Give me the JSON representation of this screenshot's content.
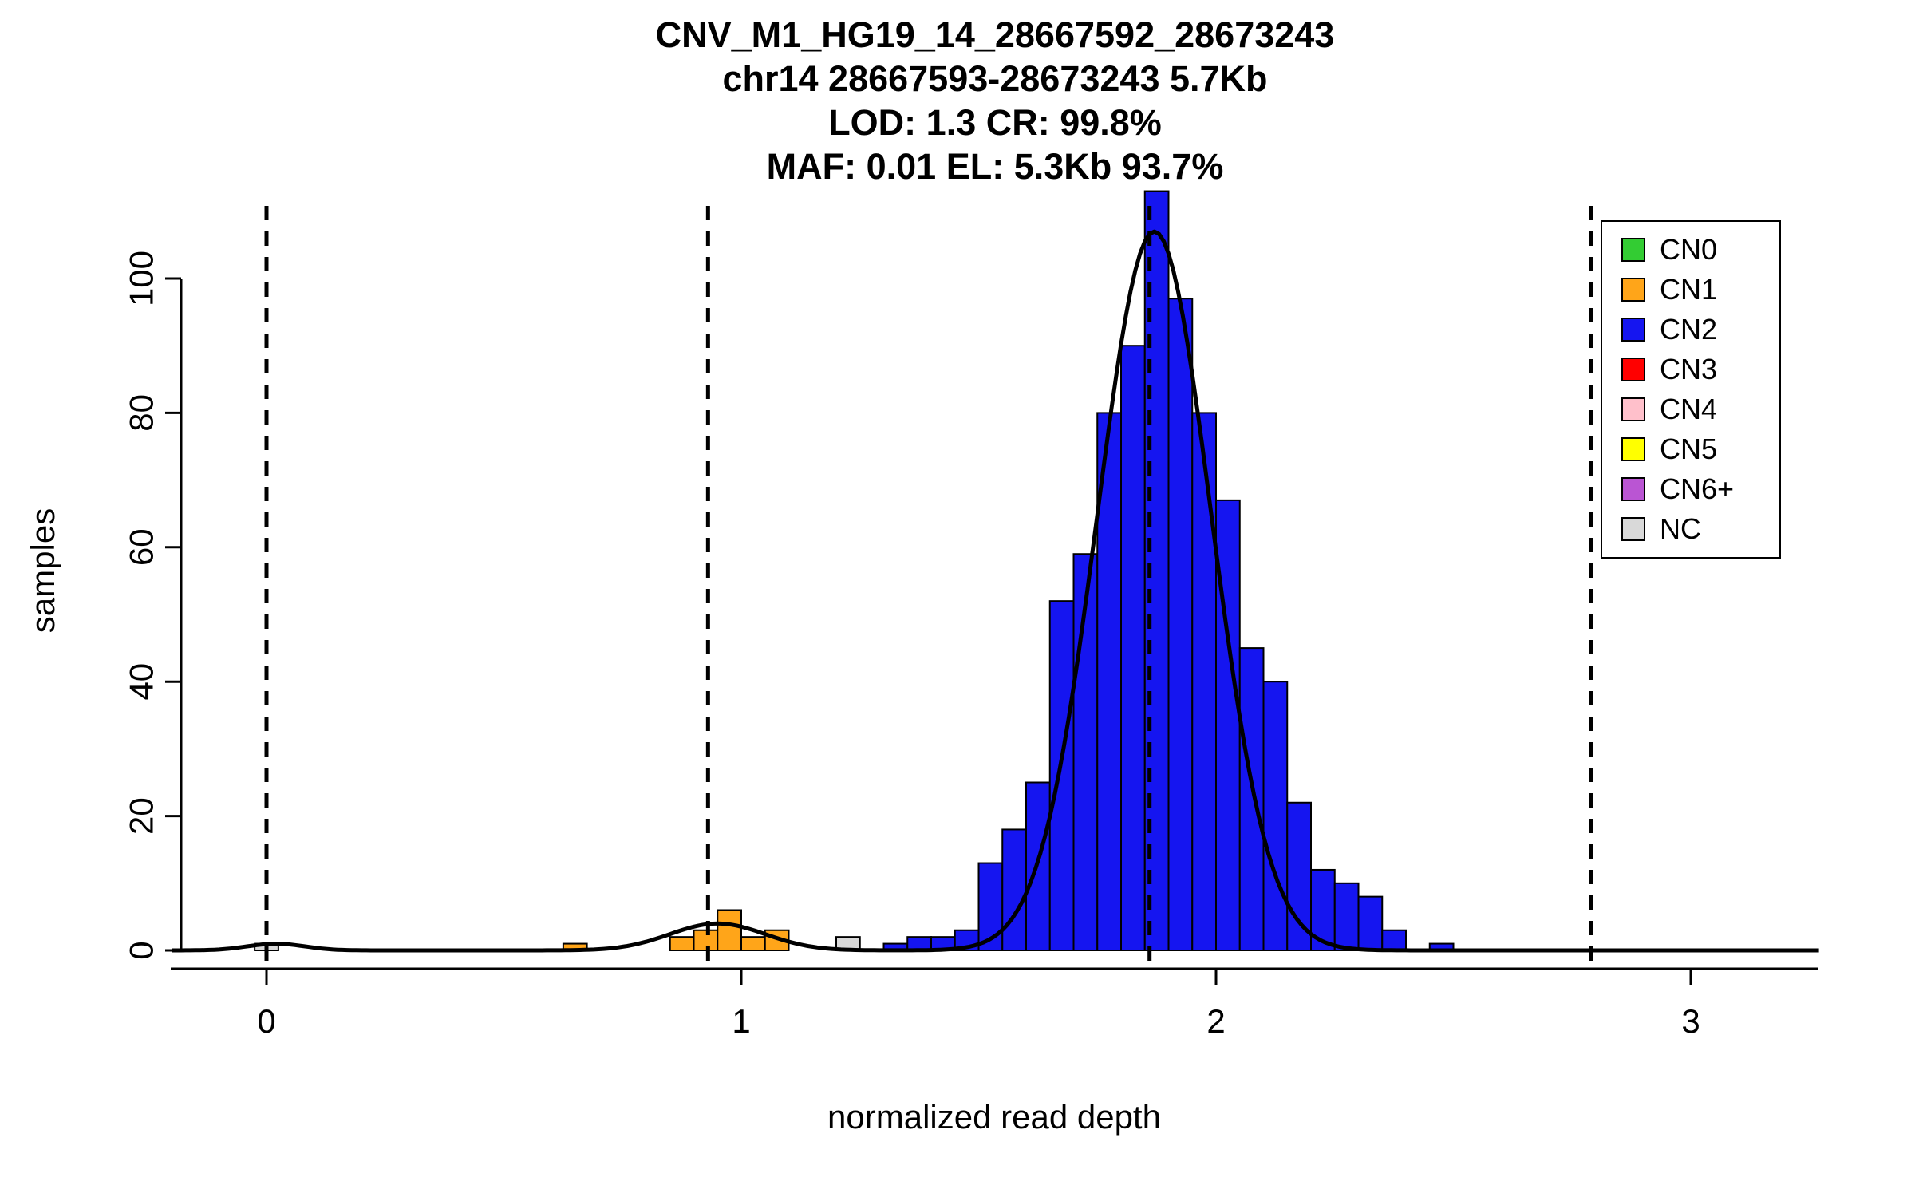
{
  "chart_data": {
    "type": "bar",
    "subtype": "histogram-with-density-curve",
    "title_lines": [
      "CNV_M1_HG19_14_28667592_28673243",
      "chr14 28667593-28673243 5.7Kb",
      "LOD: 1.3 CR: 99.8%",
      "MAF: 0.01 EL: 5.3Kb 93.7%"
    ],
    "xlabel": "normalized read depth",
    "ylabel": "samples",
    "xlim": [
      -0.2,
      3.27
    ],
    "ylim": [
      0,
      113
    ],
    "x_ticks": [
      0,
      1,
      2,
      3
    ],
    "y_ticks": [
      0,
      20,
      40,
      60,
      80,
      100
    ],
    "grid": false,
    "legend_position": "top-right",
    "bin_width": 0.05,
    "colors": {
      "CN0": "#33CC33",
      "CN1": "#FFA519",
      "CN2": "#1515F0",
      "CN3": "#FF0000",
      "CN4": "#FFC0CB",
      "CN5": "#FFFF00",
      "CN6+": "#BA55D3",
      "NC": "#D9D9D9",
      "curve": "#000000",
      "dashed": "#000000"
    },
    "legend_items": [
      "CN0",
      "CN1",
      "CN2",
      "CN3",
      "CN4",
      "CN5",
      "CN6+",
      "NC"
    ],
    "dashed_lines": [
      0,
      0.93,
      1.86,
      2.79
    ],
    "bars": [
      {
        "x": -0.025,
        "h": 1,
        "cn": "NC"
      },
      {
        "x": 0.625,
        "h": 1,
        "cn": "CN1"
      },
      {
        "x": 0.85,
        "h": 2,
        "cn": "CN1"
      },
      {
        "x": 0.9,
        "h": 3,
        "cn": "CN1"
      },
      {
        "x": 0.95,
        "h": 6,
        "cn": "CN1"
      },
      {
        "x": 1.0,
        "h": 2,
        "cn": "CN1"
      },
      {
        "x": 1.05,
        "h": 3,
        "cn": "CN1"
      },
      {
        "x": 1.2,
        "h": 2,
        "cn": "NC"
      },
      {
        "x": 1.3,
        "h": 1,
        "cn": "CN2"
      },
      {
        "x": 1.35,
        "h": 2,
        "cn": "CN2"
      },
      {
        "x": 1.4,
        "h": 2,
        "cn": "CN2"
      },
      {
        "x": 1.45,
        "h": 3,
        "cn": "CN2"
      },
      {
        "x": 1.5,
        "h": 13,
        "cn": "CN2"
      },
      {
        "x": 1.55,
        "h": 18,
        "cn": "CN2"
      },
      {
        "x": 1.6,
        "h": 25,
        "cn": "CN2"
      },
      {
        "x": 1.65,
        "h": 52,
        "cn": "CN2"
      },
      {
        "x": 1.7,
        "h": 59,
        "cn": "CN2"
      },
      {
        "x": 1.75,
        "h": 80,
        "cn": "CN2"
      },
      {
        "x": 1.8,
        "h": 90,
        "cn": "CN2"
      },
      {
        "x": 1.85,
        "h": 113,
        "cn": "CN2"
      },
      {
        "x": 1.9,
        "h": 97,
        "cn": "CN2"
      },
      {
        "x": 1.95,
        "h": 80,
        "cn": "CN2"
      },
      {
        "x": 2.0,
        "h": 67,
        "cn": "CN2"
      },
      {
        "x": 2.05,
        "h": 45,
        "cn": "CN2"
      },
      {
        "x": 2.1,
        "h": 40,
        "cn": "CN2"
      },
      {
        "x": 2.15,
        "h": 22,
        "cn": "CN2"
      },
      {
        "x": 2.2,
        "h": 12,
        "cn": "CN2"
      },
      {
        "x": 2.25,
        "h": 10,
        "cn": "CN2"
      },
      {
        "x": 2.3,
        "h": 8,
        "cn": "CN2"
      },
      {
        "x": 2.35,
        "h": 3,
        "cn": "CN2"
      },
      {
        "x": 2.45,
        "h": 1,
        "cn": "CN2"
      }
    ],
    "curve_gaussians": [
      {
        "mu": 0.02,
        "sigma": 0.06,
        "amp": 1
      },
      {
        "mu": 0.95,
        "sigma": 0.1,
        "amp": 4
      },
      {
        "mu": 1.87,
        "sigma": 0.12,
        "amp": 107
      }
    ]
  }
}
